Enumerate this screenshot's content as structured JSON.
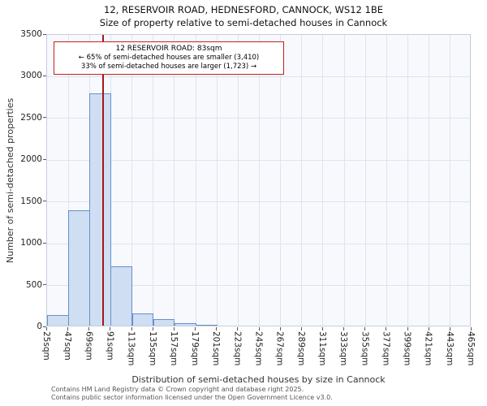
{
  "title": "12, RESERVOIR ROAD, HEDNESFORD, CANNOCK, WS12 1BE",
  "subtitle": "Size of property relative to semi-detached houses in Cannock",
  "annotation": {
    "line1": "12 RESERVOIR ROAD: 83sqm",
    "line2": "← 65% of semi-detached houses are smaller (3,410)",
    "line3": "33% of semi-detached houses are larger (1,723) →"
  },
  "footer": {
    "line1": "Contains HM Land Registry data © Crown copyright and database right 2025.",
    "line2": "Contains public sector information licensed under the Open Government Licence v3.0."
  },
  "chart_data": {
    "type": "bar",
    "title": "12, RESERVOIR ROAD, HEDNESFORD, CANNOCK, WS12 1BE — Size of property relative to semi-detached houses in Cannock",
    "xlabel": "Distribution of semi-detached houses by size in Cannock",
    "ylabel": "Number of semi-detached properties",
    "categories": [
      "25sqm",
      "47sqm",
      "69sqm",
      "91sqm",
      "113sqm",
      "135sqm",
      "157sqm",
      "179sqm",
      "201sqm",
      "223sqm",
      "245sqm",
      "267sqm",
      "289sqm",
      "311sqm",
      "333sqm",
      "355sqm",
      "377sqm",
      "399sqm",
      "421sqm",
      "443sqm",
      "465sqm"
    ],
    "values": [
      130,
      1380,
      2780,
      710,
      150,
      75,
      30,
      10,
      0,
      0,
      0,
      0,
      0,
      0,
      0,
      0,
      0,
      0,
      0,
      0
    ],
    "ylim": [
      0,
      3500
    ],
    "ytick_step": 500,
    "bin_start": 25,
    "bin_width": 22,
    "marker_value": 83,
    "grid": true,
    "colors": {
      "bar_fill": "#cfdef2",
      "bar_border": "#6690c8",
      "marker": "#a51717",
      "grid": "#dde4f0",
      "plot_bg": "#f7f9fd"
    }
  }
}
